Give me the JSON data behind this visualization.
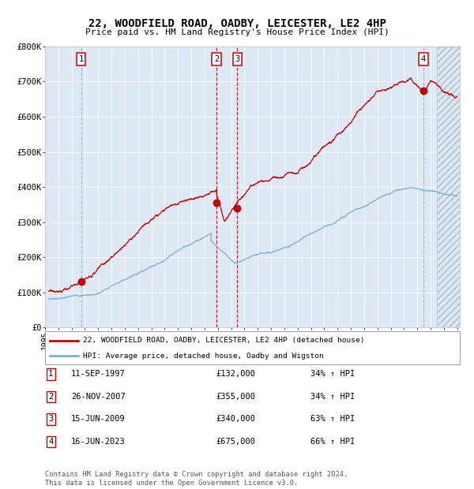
{
  "title": "22, WOODFIELD ROAD, OADBY, LEICESTER, LE2 4HP",
  "subtitle": "Price paid vs. HM Land Registry's House Price Index (HPI)",
  "ylim": [
    0,
    800000
  ],
  "yticks": [
    0,
    100000,
    200000,
    300000,
    400000,
    500000,
    600000,
    700000,
    800000
  ],
  "ytick_labels": [
    "£0",
    "£100K",
    "£200K",
    "£300K",
    "£400K",
    "£500K",
    "£600K",
    "£700K",
    "£800K"
  ],
  "xlim_start": 1995.3,
  "xlim_end": 2026.2,
  "xticks": [
    1995,
    1996,
    1997,
    1998,
    1999,
    2000,
    2001,
    2002,
    2003,
    2004,
    2005,
    2006,
    2007,
    2008,
    2009,
    2010,
    2011,
    2012,
    2013,
    2014,
    2015,
    2016,
    2017,
    2018,
    2019,
    2020,
    2021,
    2022,
    2023,
    2024,
    2025,
    2026
  ],
  "hpi_color": "#7bafd4",
  "price_color": "#cc0000",
  "bg_color": "#dce9f5",
  "grid_color": "#ffffff",
  "sale_dates": [
    1997.72,
    2007.9,
    2009.46,
    2023.46
  ],
  "sale_prices": [
    132000,
    355000,
    340000,
    675000
  ],
  "sale_labels": [
    "1",
    "2",
    "3",
    "4"
  ],
  "vline_colors": [
    "#aaaaaa",
    "#cc0000",
    "#cc0000",
    "#aaaaaa"
  ],
  "legend_line1": "22, WOODFIELD ROAD, OADBY, LEICESTER, LE2 4HP (detached house)",
  "legend_line2": "HPI: Average price, detached house, Oadby and Wigston",
  "table_data": [
    [
      "1",
      "11-SEP-1997",
      "£132,000",
      "34% ↑ HPI"
    ],
    [
      "2",
      "26-NOV-2007",
      "£355,000",
      "34% ↑ HPI"
    ],
    [
      "3",
      "15-JUN-2009",
      "£340,000",
      "63% ↑ HPI"
    ],
    [
      "4",
      "16-JUN-2023",
      "£675,000",
      "66% ↑ HPI"
    ]
  ],
  "footer": "Contains HM Land Registry data © Crown copyright and database right 2024.\nThis data is licensed under the Open Government Licence v3.0.",
  "label_box_edge": "#cc0000",
  "future_start": 2024.46,
  "hatch_region_color": "#c0c0c0"
}
